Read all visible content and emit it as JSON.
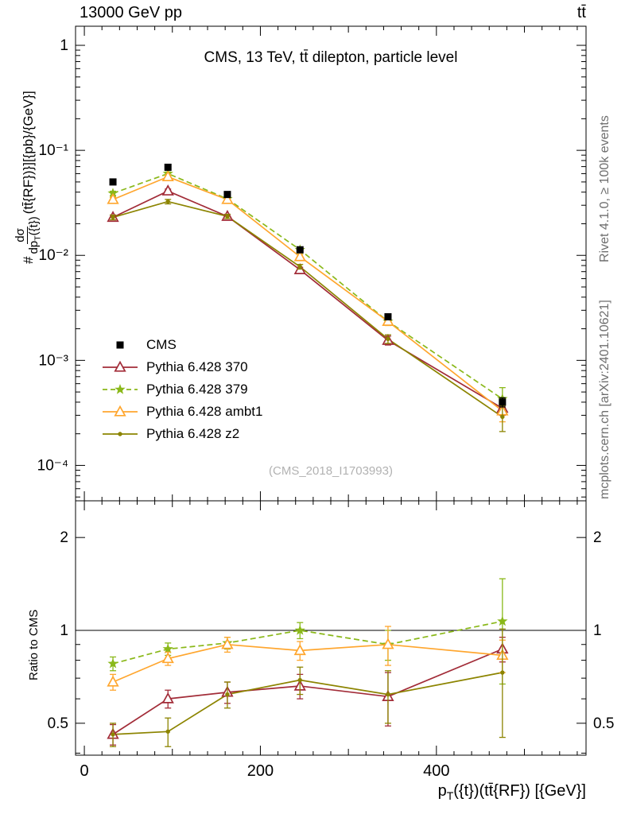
{
  "header": {
    "left": "13000 GeV pp",
    "right": "tt̄"
  },
  "panel_title": "CMS, 13 TeV, tt̄ dilepton, particle level",
  "watermark": "(CMS_2018_I1703993)",
  "side_notes": {
    "top": "Rivet 4.1.0, ≥ 100k events",
    "bottom": "mcplots.cern.ch [arXiv:2401.10621]"
  },
  "axes": {
    "xlim": [
      -10,
      570
    ],
    "x_ticks": {
      "major": [
        0,
        200,
        400
      ],
      "labels": [
        "0",
        "200",
        "400"
      ],
      "minor_step": 20,
      "mid_step": 100
    },
    "main": {
      "tick_labels": [
        {
          "v": 1,
          "t": "1"
        },
        {
          "v": 0.1,
          "t": "10⁻¹"
        },
        {
          "v": 0.01,
          "t": "10⁻²"
        },
        {
          "v": 0.001,
          "t": "10⁻³"
        },
        {
          "v": 0.0001,
          "t": "10⁻⁴"
        }
      ]
    },
    "ratio": {
      "tick_labels": [
        {
          "v": 0.5,
          "t": "0.5"
        },
        {
          "v": 1,
          "t": "1"
        },
        {
          "v": 2,
          "t": "2"
        }
      ]
    },
    "y_main_label": {
      "prefix": "#",
      "num": "dσ",
      "den_pre": "dp",
      "den_sub": "T",
      "den_post": "({t})",
      "suffix": "(tt̄{RF})}][{pb}/{GeV}]"
    },
    "y_ratio_label": "Ratio to CMS",
    "x_label": {
      "p": "p",
      "sub": "T",
      "rest": "({t})(tt̄{RF}) [{GeV}]"
    }
  },
  "chart_data": {
    "type": "line",
    "title": "CMS, 13 TeV, tt̄ dilepton, particle level",
    "xlabel": "pT({t})(tt{RF}) [{GeV}]",
    "x": [
      32.5,
      95,
      162.5,
      245,
      345,
      475
    ],
    "main_panel": {
      "ylabel": "# dσ/dpT({t})(tt{RF}) [{pb}/{GeV}]",
      "yscale": "log",
      "ylim": [
        4.6e-05,
        1.52
      ],
      "series": [
        {
          "name": "CMS",
          "color": "#000000",
          "marker": "square",
          "line": "none",
          "values": [
            0.05,
            0.069,
            0.038,
            0.0113,
            0.0026,
            0.0004
          ],
          "yerr": [
            0.002,
            0.002,
            0.0012,
            0.0004,
            0.00012,
            4e-05
          ]
        },
        {
          "name": "Pythia 6.428 370",
          "color": "#a22c38",
          "marker": "triangle",
          "line": "solid",
          "values": [
            0.023,
            0.041,
            0.0235,
            0.0073,
            0.00155,
            0.00035
          ],
          "yerr": [
            0.0012,
            0.0018,
            0.0011,
            0.0004,
            0.00015,
            5e-05
          ]
        },
        {
          "name": "Pythia 6.428 379",
          "color": "#8ab819",
          "marker": "star",
          "line": "dashed",
          "values": [
            0.039,
            0.06,
            0.0345,
            0.0113,
            0.00235,
            0.00043
          ],
          "yerr": [
            0.0018,
            0.0022,
            0.0013,
            0.0005,
            0.0002,
            0.00012
          ]
        },
        {
          "name": "Pythia 6.428 ambt1",
          "color": "#ffa62e",
          "marker": "triangle",
          "line": "solid",
          "values": [
            0.034,
            0.056,
            0.034,
            0.0097,
            0.00235,
            0.00033
          ],
          "yerr": [
            0.0016,
            0.0021,
            0.0013,
            0.0005,
            0.0002,
            7e-05
          ]
        },
        {
          "name": "Pythia 6.428 z2",
          "color": "#8c8400",
          "marker": "dot",
          "line": "solid",
          "values": [
            0.023,
            0.0325,
            0.0235,
            0.0078,
            0.0016,
            0.00029
          ],
          "yerr": [
            0.0012,
            0.0016,
            0.0011,
            0.0004,
            0.00015,
            8e-05
          ]
        }
      ]
    },
    "ratio_panel": {
      "ylabel": "Ratio to CMS",
      "yscale": "log",
      "ylim": [
        0.394,
        2.63
      ],
      "reference_line": 1,
      "series": [
        {
          "name": "Pythia 6.428 370",
          "color": "#a22c38",
          "marker": "triangle",
          "line": "solid",
          "values": [
            0.46,
            0.6,
            0.63,
            0.66,
            0.61,
            0.87
          ],
          "yerr": [
            0.035,
            0.04,
            0.05,
            0.06,
            0.12,
            0.08
          ]
        },
        {
          "name": "Pythia 6.428 379",
          "color": "#8ab819",
          "marker": "star",
          "line": "dashed",
          "values": [
            0.78,
            0.87,
            0.91,
            1.0,
            0.9,
            1.07
          ],
          "yerr": [
            0.04,
            0.04,
            0.04,
            0.06,
            0.1,
            0.4
          ]
        },
        {
          "name": "Pythia 6.428 ambt1",
          "color": "#ffa62e",
          "marker": "triangle",
          "line": "solid",
          "values": [
            0.68,
            0.81,
            0.9,
            0.86,
            0.9,
            0.83
          ],
          "yerr": [
            0.04,
            0.04,
            0.05,
            0.06,
            0.13,
            0.1
          ]
        },
        {
          "name": "Pythia 6.428 z2",
          "color": "#8c8400",
          "marker": "dot",
          "line": "solid",
          "values": [
            0.46,
            0.47,
            0.62,
            0.69,
            0.62,
            0.73
          ],
          "yerr": [
            0.04,
            0.05,
            0.06,
            0.07,
            0.12,
            0.28
          ]
        }
      ]
    }
  }
}
